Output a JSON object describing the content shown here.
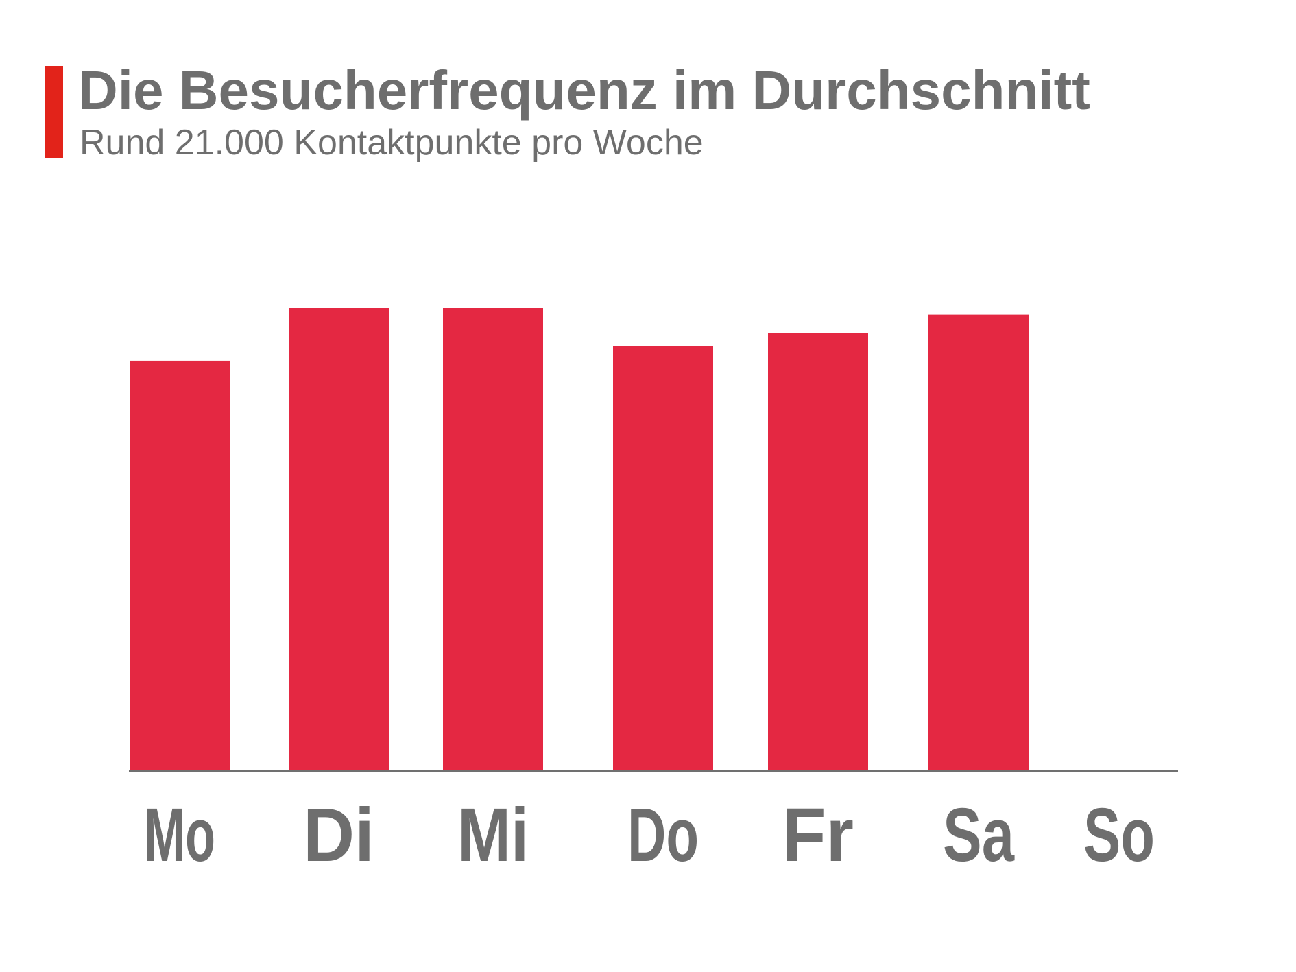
{
  "header": {
    "title": "Die Besucherfrequenz im Durchschnitt",
    "subtitle": "Rund 21.000 Kontaktpunkte pro Woche"
  },
  "colors": {
    "accent": "#e2231a",
    "bar": "#e42842",
    "text": "#6e6e6e",
    "axis": "#707070"
  },
  "chart_data": {
    "type": "bar",
    "title": "Die Besucherfrequenz im Durchschnitt",
    "subtitle": "Rund 21.000 Kontaktpunkte pro Woche",
    "categories": [
      "Mo",
      "Di",
      "Mi",
      "Do",
      "Fr",
      "Sa",
      "So"
    ],
    "values": [
      3100,
      3500,
      3500,
      3210,
      3310,
      3450,
      0
    ],
    "xlabel": "",
    "ylabel": "",
    "ylim": [
      0,
      3500
    ],
    "grid": false,
    "legend": "none"
  }
}
